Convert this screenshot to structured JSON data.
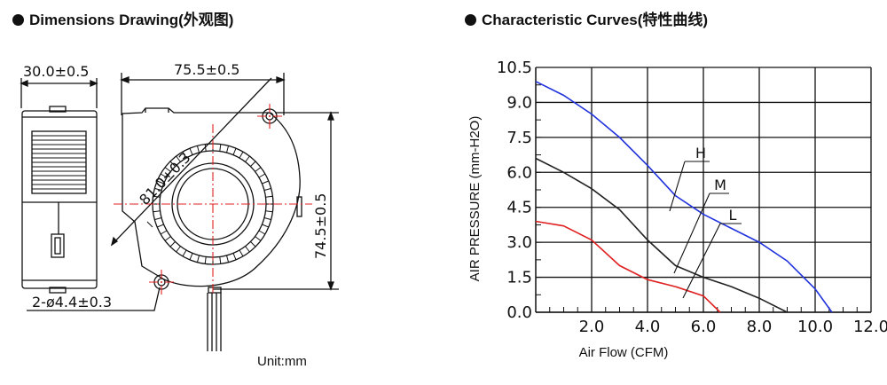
{
  "left_panel": {
    "title": "Dimensions Drawing(外观图)",
    "dims": {
      "depth": "30.0±0.5",
      "width": "75.5±0.5",
      "diagonal": "81.0±0.3",
      "height": "74.5±0.5",
      "hole": "2-ø4.4±0.3"
    },
    "unit": "Unit:mm"
  },
  "right_panel": {
    "title": "Characteristic Curves(特性曲线)",
    "curve_labels": [
      "H",
      "M",
      "L"
    ]
  },
  "chart_data": {
    "type": "line",
    "title": "",
    "xlabel": "Air Flow (CFM)",
    "ylabel": "AIR PRESSURE (mm-H2O)",
    "xlim": [
      0,
      12.0
    ],
    "ylim": [
      0,
      10.5
    ],
    "x_ticks": [
      "2.0",
      "4.0",
      "6.0",
      "8.0",
      "10.0",
      "12.0"
    ],
    "y_ticks": [
      "0.0",
      "1.5",
      "3.0",
      "4.5",
      "6.0",
      "7.5",
      "9.0",
      "10.5"
    ],
    "grid": true,
    "colors": {
      "H": "#2233dd",
      "M": "#222222",
      "L": "#e02020"
    },
    "series": [
      {
        "name": "H",
        "x": [
          0,
          1,
          2,
          3,
          4,
          5,
          6,
          7,
          8,
          9,
          10,
          10.6
        ],
        "y": [
          9.9,
          9.3,
          8.5,
          7.5,
          6.3,
          5.0,
          4.2,
          3.6,
          3.0,
          2.2,
          1.0,
          0.0
        ]
      },
      {
        "name": "M",
        "x": [
          0,
          1,
          2,
          3,
          4,
          5,
          6,
          7,
          8,
          9.0
        ],
        "y": [
          6.6,
          6.0,
          5.3,
          4.4,
          3.1,
          2.0,
          1.5,
          1.1,
          0.6,
          0.0
        ]
      },
      {
        "name": "L",
        "x": [
          0,
          1,
          2,
          3,
          4,
          5,
          6,
          6.6
        ],
        "y": [
          3.9,
          3.7,
          3.1,
          2.0,
          1.4,
          1.1,
          0.7,
          0.0
        ]
      }
    ]
  }
}
